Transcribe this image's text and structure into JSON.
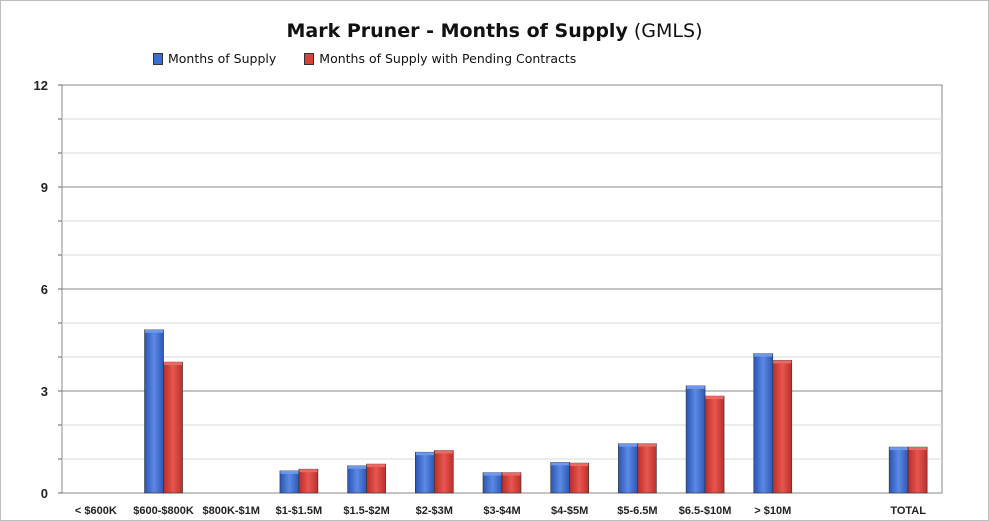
{
  "title": {
    "main": "Mark Pruner - Months of Supply",
    "suffix": "(GMLS)"
  },
  "chart_data": {
    "type": "bar",
    "title": "Mark Pruner - Months of Supply (GMLS)",
    "categories": [
      "< $600K",
      "$600-$800K",
      "$800K-$1M",
      "$1-$1.5M",
      "$1.5-$2M",
      "$2-$3M",
      "$3-$4M",
      "$4-$5M",
      "$5-6.5M",
      "$6.5-$10M",
      "> $10M",
      "",
      "TOTAL"
    ],
    "series": [
      {
        "name": "Months of Supply",
        "color": "#3a6fd0",
        "values": [
          0,
          4.8,
          0,
          0.65,
          0.8,
          1.2,
          0.6,
          0.9,
          1.45,
          3.15,
          4.1,
          0,
          1.35
        ]
      },
      {
        "name": "Months of Supply with Pending Contracts",
        "color": "#d9403a",
        "values": [
          0,
          3.85,
          0,
          0.7,
          0.85,
          1.25,
          0.6,
          0.88,
          1.45,
          2.85,
          3.9,
          0,
          1.35
        ]
      }
    ],
    "ylim": [
      0,
      12
    ],
    "yticks": [
      0,
      3,
      6,
      9,
      12
    ],
    "grid": true,
    "legend": "top"
  }
}
